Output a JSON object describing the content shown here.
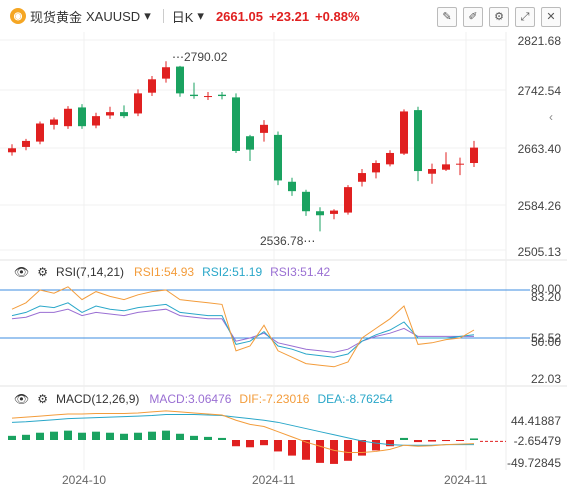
{
  "header": {
    "name": "现货黄金",
    "symbol": "XAUUSD",
    "timeframe": "日K",
    "price": "2661.05",
    "change": "+23.21",
    "change_pct": "+0.88%",
    "up_color": "#e02020",
    "down_color": "#1aa260"
  },
  "toolbar": [
    "draw-icon",
    "pen-icon",
    "settings-icon",
    "fullscreen-icon",
    "close-icon"
  ],
  "main_axis": [
    "2821.68",
    "2742.54",
    "2663.40",
    "2584.26",
    "2505.13"
  ],
  "annotations": {
    "high": "2790.02",
    "low": "2536.78"
  },
  "rsi": {
    "title": "RSI(7,14,21)",
    "rsi1": "RSI1:54.93",
    "rsi2": "RSI2:51.19",
    "rsi3": "RSI3:51.42",
    "axis": [
      "80.00",
      "83.20",
      "52.52",
      "50.00",
      "22.03"
    ]
  },
  "macd": {
    "title": "MACD(12,26,9)",
    "macd": "MACD:3.06476",
    "dif": "DIF:-7.23016",
    "dea": "DEA:-8.76254",
    "axis": [
      "44.41887",
      "-2.65479",
      "-49.72845"
    ]
  },
  "xaxis": [
    "2024-10",
    "2024-11",
    "2024-11"
  ],
  "chart_data": {
    "type": "candlestick",
    "candles": [
      {
        "o": 2654,
        "h": 2666,
        "l": 2649,
        "c": 2660
      },
      {
        "o": 2662,
        "h": 2674,
        "l": 2657,
        "c": 2671
      },
      {
        "o": 2670,
        "h": 2700,
        "l": 2666,
        "c": 2697
      },
      {
        "o": 2695,
        "h": 2706,
        "l": 2688,
        "c": 2703
      },
      {
        "o": 2693,
        "h": 2723,
        "l": 2689,
        "c": 2719
      },
      {
        "o": 2721,
        "h": 2726,
        "l": 2689,
        "c": 2693
      },
      {
        "o": 2694,
        "h": 2713,
        "l": 2690,
        "c": 2708
      },
      {
        "o": 2709,
        "h": 2722,
        "l": 2704,
        "c": 2714
      },
      {
        "o": 2714,
        "h": 2724,
        "l": 2705,
        "c": 2708
      },
      {
        "o": 2712,
        "h": 2748,
        "l": 2708,
        "c": 2742
      },
      {
        "o": 2743,
        "h": 2768,
        "l": 2738,
        "c": 2763
      },
      {
        "o": 2764,
        "h": 2790,
        "l": 2758,
        "c": 2781
      },
      {
        "o": 2782,
        "h": 2783,
        "l": 2737,
        "c": 2742
      },
      {
        "o": 2740,
        "h": 2758,
        "l": 2734,
        "c": 2738
      },
      {
        "o": 2738,
        "h": 2744,
        "l": 2732,
        "c": 2738
      },
      {
        "o": 2740,
        "h": 2744,
        "l": 2733,
        "c": 2738
      },
      {
        "o": 2736,
        "h": 2742,
        "l": 2653,
        "c": 2656
      },
      {
        "o": 2678,
        "h": 2680,
        "l": 2641,
        "c": 2658
      },
      {
        "o": 2683,
        "h": 2702,
        "l": 2670,
        "c": 2695
      },
      {
        "o": 2680,
        "h": 2685,
        "l": 2605,
        "c": 2612
      },
      {
        "o": 2610,
        "h": 2616,
        "l": 2589,
        "c": 2596
      },
      {
        "o": 2595,
        "h": 2598,
        "l": 2559,
        "c": 2566
      },
      {
        "o": 2566,
        "h": 2572,
        "l": 2536,
        "c": 2560
      },
      {
        "o": 2562,
        "h": 2569,
        "l": 2554,
        "c": 2567
      },
      {
        "o": 2564,
        "h": 2605,
        "l": 2561,
        "c": 2602
      },
      {
        "o": 2610,
        "h": 2629,
        "l": 2603,
        "c": 2623
      },
      {
        "o": 2624,
        "h": 2642,
        "l": 2615,
        "c": 2638
      },
      {
        "o": 2636,
        "h": 2657,
        "l": 2633,
        "c": 2653
      },
      {
        "o": 2652,
        "h": 2718,
        "l": 2650,
        "c": 2715
      },
      {
        "o": 2717,
        "h": 2722,
        "l": 2611,
        "c": 2626
      },
      {
        "o": 2622,
        "h": 2637,
        "l": 2607,
        "c": 2629
      },
      {
        "o": 2628,
        "h": 2654,
        "l": 2626,
        "c": 2636
      },
      {
        "o": 2636,
        "h": 2646,
        "l": 2620,
        "c": 2637
      },
      {
        "o": 2638,
        "h": 2671,
        "l": 2632,
        "c": 2661
      }
    ],
    "rsi1": [
      68,
      72,
      80,
      78,
      82,
      74,
      79,
      76,
      74,
      77,
      79,
      80,
      74,
      73,
      72,
      71,
      42,
      45,
      58,
      42,
      38,
      34,
      33,
      32,
      35,
      50,
      56,
      62,
      70,
      46,
      47,
      49,
      50,
      55
    ],
    "rsi2": [
      64,
      66,
      70,
      69,
      72,
      66,
      70,
      68,
      67,
      69,
      70,
      71,
      66,
      65,
      64,
      64,
      46,
      48,
      54,
      45,
      43,
      40,
      39,
      38,
      40,
      48,
      52,
      55,
      60,
      50,
      50,
      50,
      51,
      52
    ],
    "rsi3": [
      62,
      63,
      66,
      66,
      68,
      64,
      66,
      65,
      64,
      66,
      67,
      68,
      64,
      63,
      62,
      62,
      48,
      50,
      53,
      47,
      45,
      43,
      42,
      41,
      43,
      48,
      51,
      53,
      56,
      51,
      51,
      51,
      51,
      51
    ],
    "macd_hist": [
      8,
      10,
      14,
      16,
      18,
      14,
      16,
      14,
      12,
      14,
      16,
      18,
      12,
      8,
      6,
      4,
      -12,
      -14,
      -10,
      -22,
      -30,
      -38,
      -44,
      -46,
      -40,
      -30,
      -20,
      -12,
      4,
      -4,
      -3,
      -2,
      -1,
      3
    ],
    "dif": [
      42,
      44,
      46,
      48,
      50,
      50,
      51,
      51,
      51,
      52,
      54,
      56,
      54,
      52,
      50,
      48,
      38,
      30,
      26,
      16,
      6,
      -4,
      -12,
      -20,
      -24,
      -24,
      -22,
      -18,
      -10,
      -12,
      -11,
      -9,
      -8,
      -7
    ],
    "dea": [
      34,
      35,
      37,
      39,
      41,
      42,
      43,
      44,
      45,
      46,
      47,
      49,
      49,
      49,
      48,
      47,
      44,
      41,
      38,
      34,
      28,
      22,
      16,
      10,
      4,
      -2,
      -6,
      -9,
      -10,
      -10,
      -10,
      -9,
      -9,
      -9
    ]
  }
}
